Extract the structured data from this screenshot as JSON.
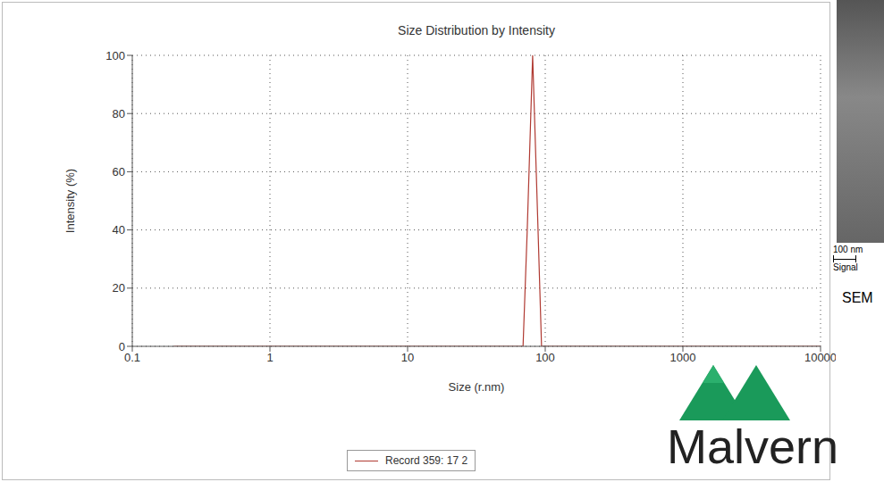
{
  "chart_data": {
    "type": "line",
    "title": "Size Distribution by Intensity",
    "x_label": "Size (r.nm)",
    "y_label": "Intensity (%)",
    "log": "x",
    "grid": true,
    "legend": "bottom",
    "x": [
      0.2,
      1,
      10,
      69,
      74,
      81,
      88,
      94,
      100,
      1000,
      10000
    ],
    "series": [
      {
        "name": "Record 359: 17 2",
        "color": "#b03a32",
        "values": [
          0,
          0,
          0,
          0,
          40,
          100,
          45,
          0,
          0,
          0,
          0
        ]
      }
    ],
    "xlim": [
      0.1,
      10000
    ],
    "xticks": [
      0.1,
      1,
      10,
      100,
      1000,
      10000
    ],
    "ylim": [
      0,
      100
    ],
    "yticks": [
      0,
      20,
      40,
      60,
      80,
      100
    ],
    "annotations": [
      "Malvern",
      "100 nm",
      "Signal",
      "SEM"
    ]
  }
}
